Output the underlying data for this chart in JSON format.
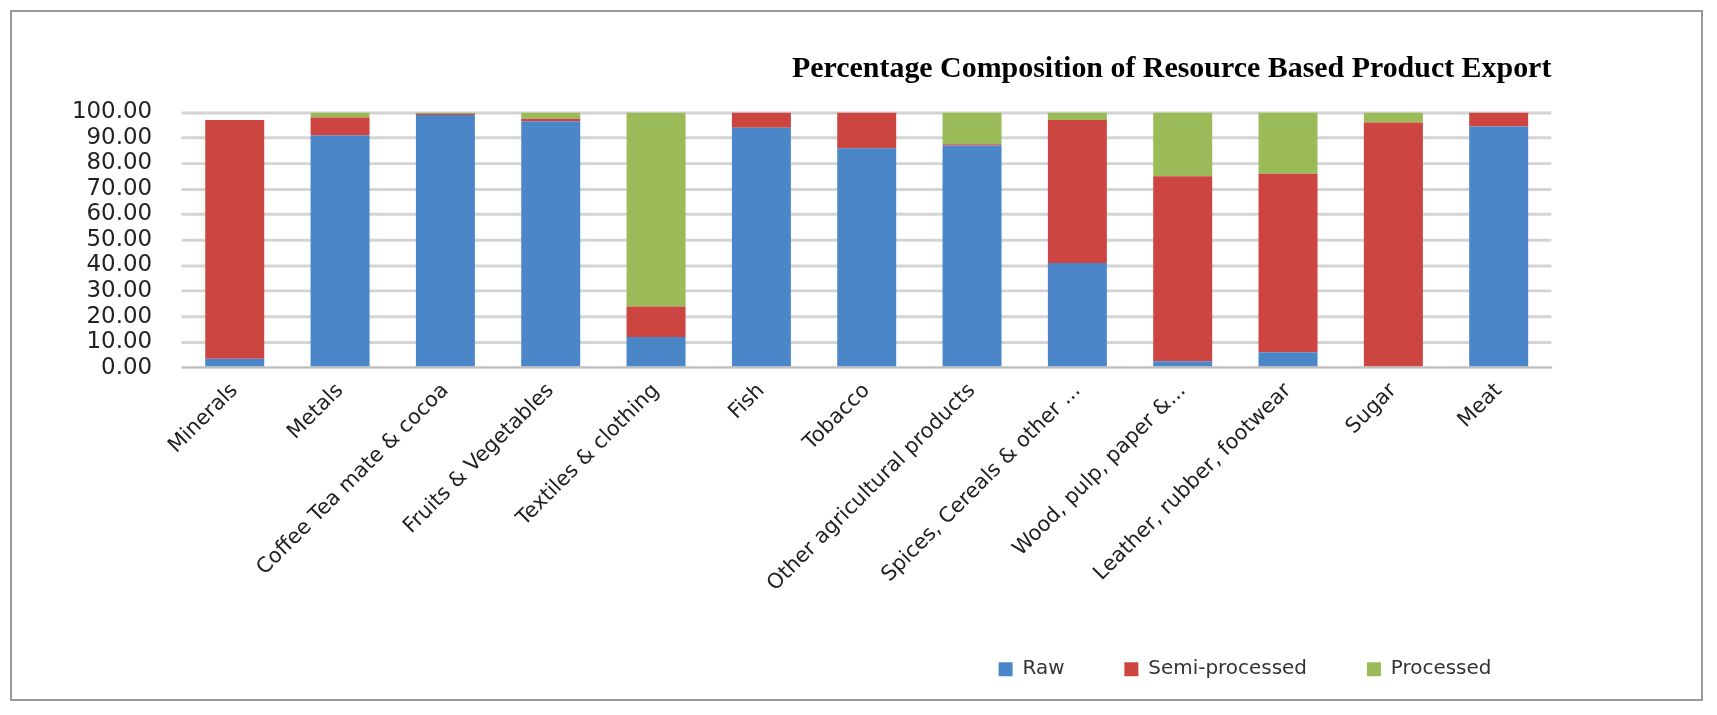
{
  "chart_data": {
    "type": "bar",
    "title": "Percentage Composition of Resource Based Product Export",
    "categories": [
      "Minerals",
      "Metals",
      "Coffee Tea mate & cocoa",
      "Fruits & Vegetables",
      "Textiles & clothing",
      "Fish",
      "Tobacco",
      "Other agricultural products",
      "Spices, Cereals & other ...",
      "Wood, pulp, paper &...",
      "Leather, rubber, footwear",
      "Sugar",
      "Meat"
    ],
    "series": [
      {
        "name": "Raw",
        "color": "#4a86c8",
        "values": [
          3.5,
          91,
          99,
          96.5,
          12,
          94,
          86,
          87,
          41,
          2.5,
          6,
          0,
          94.5
        ]
      },
      {
        "name": "Semi-processed",
        "color": "#cc4540",
        "values": [
          93.5,
          7,
          0.5,
          1,
          12,
          6,
          14,
          0.5,
          56,
          72.5,
          70,
          96,
          5.5
        ]
      },
      {
        "name": "Processed",
        "color": "#9bbb59",
        "values": [
          0,
          2,
          0.5,
          2.5,
          76,
          0,
          0,
          12.5,
          3,
          25,
          24,
          4,
          0
        ]
      }
    ],
    "stacked": true,
    "ylim": [
      0,
      100
    ],
    "yticks": [
      {
        "value": 0,
        "label": "0.00"
      },
      {
        "value": 10,
        "label": "10.00"
      },
      {
        "value": 20,
        "label": "20.00"
      },
      {
        "value": 30,
        "label": "30.00"
      },
      {
        "value": 40,
        "label": "40.00"
      },
      {
        "value": 50,
        "label": "50.00"
      },
      {
        "value": 60,
        "label": "60.00"
      },
      {
        "value": 70,
        "label": "70.00"
      },
      {
        "value": 80,
        "label": "80.00"
      },
      {
        "value": 90,
        "label": "90.00"
      },
      {
        "value": 100,
        "label": "100.00"
      }
    ],
    "grid": "y",
    "legend": "bottom right"
  }
}
